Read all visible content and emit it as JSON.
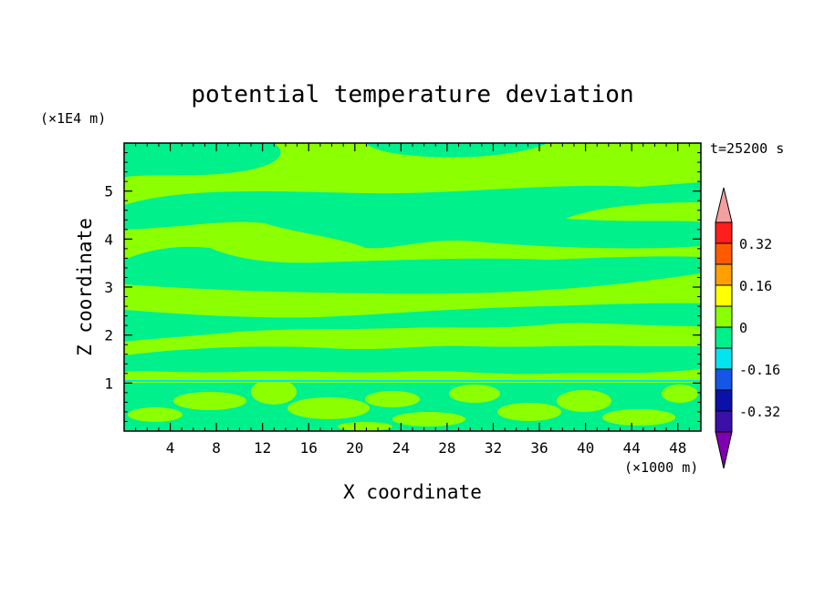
{
  "chart_data": {
    "type": "heatmap",
    "title": "potential temperature deviation",
    "time_label": "t=25200 s",
    "xlabel": "X coordinate",
    "ylabel": "Z coordinate",
    "x_unit": "(×1000 m)",
    "y_unit": "(×1E4 m)",
    "xlim": [
      0,
      50
    ],
    "ylim": [
      0,
      6
    ],
    "x_ticks": [
      "4",
      "8",
      "12",
      "16",
      "20",
      "24",
      "28",
      "32",
      "36",
      "40",
      "44",
      "48"
    ],
    "x_tick_values": [
      4,
      8,
      12,
      16,
      20,
      24,
      28,
      32,
      36,
      40,
      44,
      48
    ],
    "y_ticks": [
      "1",
      "2",
      "3",
      "4",
      "5"
    ],
    "y_tick_values": [
      1,
      2,
      3,
      4,
      5
    ],
    "field_note": "values mostly between -0.08 and 0.08 (green bands), thin layer near Z=1.05 with small excursions",
    "colorbar": {
      "levels": [
        -0.4,
        -0.32,
        -0.24,
        -0.16,
        -0.08,
        0,
        0.08,
        0.16,
        0.24,
        0.32,
        0.4
      ],
      "tick_labels": [
        "0.32",
        "0.16",
        "0",
        "-0.16",
        "-0.32"
      ],
      "tick_values": [
        0.32,
        0.16,
        0,
        -0.16,
        -0.32
      ],
      "colors_low_to_high": [
        "#7f00b0",
        "#3a10a8",
        "#0a10a8",
        "#1456e6",
        "#00e5f0",
        "#00f08c",
        "#8cff00",
        "#ffff00",
        "#ffa000",
        "#ff5a00",
        "#ff1e1e",
        "#f4a0a0"
      ],
      "low_color": "#00f08c",
      "high_color": "#8cff00"
    }
  }
}
